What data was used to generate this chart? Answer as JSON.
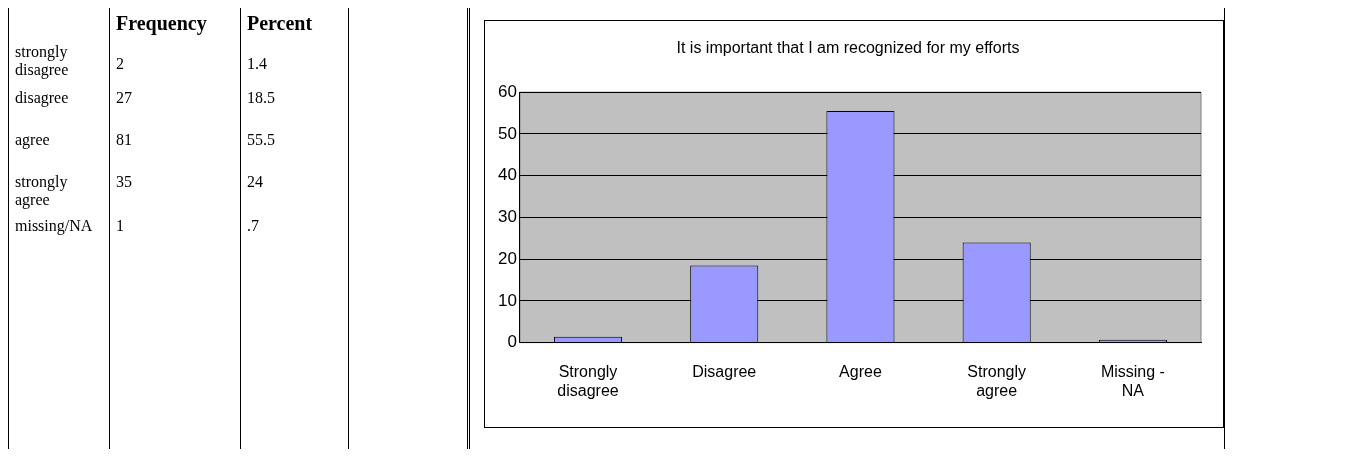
{
  "chart_data": [
    {
      "type": "other",
      "data_labels": true,
      "categories": [
        "strongly disagree",
        "disagree",
        "agree",
        "strongly agree",
        "missing/NA"
      ],
      "series": [
        {
          "name": "Frequency",
          "values": [
            2,
            27,
            81,
            35,
            1
          ]
        },
        {
          "name": "Percent",
          "values": [
            1.4,
            18.5,
            55.5,
            24,
            0.7
          ],
          "value_labels": [
            "1.4",
            "18.5",
            "55.5",
            "24",
            ".7"
          ]
        }
      ]
    },
    {
      "type": "bar",
      "title": "It is important that I am recognized for my efforts",
      "categories": [
        "Strongly disagree",
        "Disagree",
        "Agree",
        "Strongly agree",
        "Missing - NA"
      ],
      "values": [
        1.4,
        18.5,
        55.5,
        24,
        0.7
      ],
      "color": "#9999ff",
      "ylim": [
        0,
        60
      ],
      "yticks": [
        0,
        10,
        20,
        30,
        40,
        50,
        60
      ],
      "grid": "y",
      "legend": false
    }
  ]
}
